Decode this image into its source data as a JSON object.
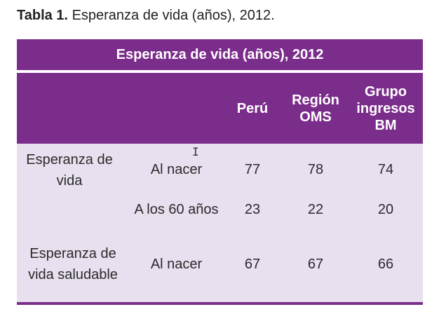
{
  "caption": {
    "label": "Tabla 1.",
    "text": "Esperanza de vida (años), 2012."
  },
  "table": {
    "title": "Esperanza de vida (años), 2012",
    "headers": {
      "peru": "Perú",
      "oms": "Región OMS",
      "bm": "Grupo ingresos BM"
    },
    "rows": [
      {
        "group": "Esperanza de vida",
        "sub": "Al nacer",
        "peru": "77",
        "oms": "78",
        "bm": "74"
      },
      {
        "group": "",
        "sub": "A los 60 años",
        "peru": "23",
        "oms": "22",
        "bm": "20"
      },
      {
        "group": "Esperanza de vida saludable",
        "sub": "Al nacer",
        "peru": "67",
        "oms": "67",
        "bm": "66"
      }
    ]
  },
  "colors": {
    "header_purple": "#7b2d8b",
    "body_lilac": "#e9e0ef"
  },
  "icons": {
    "cursor": "text-cursor-icon"
  }
}
